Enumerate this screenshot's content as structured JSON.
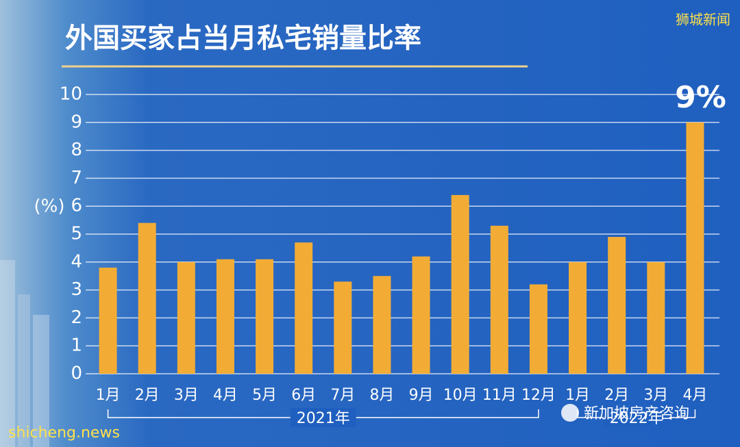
{
  "chart_data": {
    "type": "bar",
    "title": "外国买家占当月私宅销量比率",
    "ylabel": "(%)",
    "categories": [
      "1月",
      "2月",
      "3月",
      "4月",
      "5月",
      "6月",
      "7月",
      "8月",
      "9月",
      "10月",
      "11月",
      "12月",
      "1月",
      "2月",
      "3月",
      "4月"
    ],
    "values": [
      3.8,
      5.4,
      4.0,
      4.1,
      4.1,
      4.7,
      3.3,
      3.5,
      4.2,
      6.4,
      5.3,
      3.2,
      4.0,
      4.9,
      4.0,
      9.0
    ],
    "value_labels": [
      null,
      null,
      null,
      null,
      null,
      null,
      null,
      null,
      null,
      null,
      null,
      null,
      null,
      null,
      null,
      "9%"
    ],
    "x_groups": [
      "2021年",
      "2022年"
    ],
    "color": "#f2ac35",
    "ylim": [
      0,
      10
    ],
    "yticks": [
      0,
      1,
      2,
      3,
      4,
      5,
      6,
      7,
      8,
      9,
      10
    ],
    "grid": true
  },
  "watermarks": [
    "狮城新闻",
    "shicheng.news",
    "新加坡房产咨询"
  ]
}
